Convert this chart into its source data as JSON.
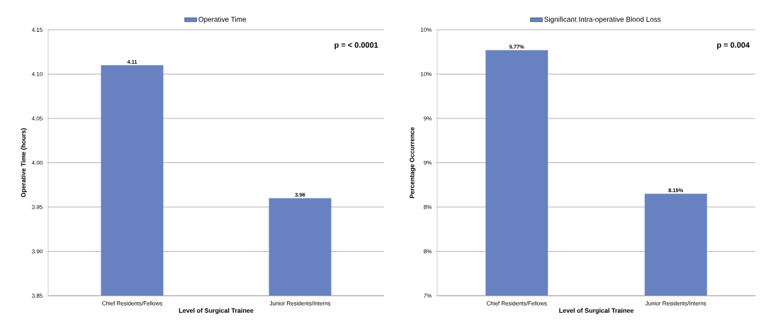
{
  "chart_data": [
    {
      "type": "bar",
      "categories": [
        "Chief Residents/Fellows",
        "Junior Residents/Interns"
      ],
      "xlabel": "Level of Surgical Trainee",
      "ylabel": "Operative Time (hours)",
      "series": [
        {
          "name": "Operative Time",
          "color": "#6882c1",
          "values": [
            4.11,
            3.96
          ],
          "value_labels": [
            "4.11",
            "3.96"
          ]
        }
      ],
      "ylim": [
        3.85,
        4.15
      ],
      "yticks": [
        {
          "value": 3.85,
          "label": "3.85"
        },
        {
          "value": 3.9,
          "label": "3.90"
        },
        {
          "value": 3.95,
          "label": "3.95"
        },
        {
          "value": 4.0,
          "label": "4.00"
        },
        {
          "value": 4.05,
          "label": "4.05"
        },
        {
          "value": 4.1,
          "label": "4.10"
        },
        {
          "value": 4.15,
          "label": "4.15"
        }
      ],
      "grid": "y",
      "legend": "top",
      "annotations": [
        "p = < 0.0001"
      ]
    },
    {
      "type": "bar",
      "categories": [
        "Chief Residents/Fellows",
        "Junior Residents/Interns"
      ],
      "xlabel": "Level of Surgical Trainee",
      "ylabel": "Percentage Occurrence",
      "series": [
        {
          "name": "Significant Intra-operative Blood Loss",
          "color": "#6882c1",
          "values": [
            9.77,
            8.15
          ],
          "value_labels": [
            "9.77%",
            "8.15%"
          ]
        }
      ],
      "ylim": [
        7,
        10
      ],
      "yticks": [
        {
          "value": 7,
          "label": "7%"
        },
        {
          "value": 7.5,
          "label": "8%"
        },
        {
          "value": 8,
          "label": "8%"
        },
        {
          "value": 8.5,
          "label": "9%"
        },
        {
          "value": 9,
          "label": "9%"
        },
        {
          "value": 9.5,
          "label": "10%"
        },
        {
          "value": 10,
          "label": "10%"
        }
      ],
      "grid": "y",
      "legend": "top",
      "annotations": [
        "p = 0.004"
      ]
    }
  ]
}
